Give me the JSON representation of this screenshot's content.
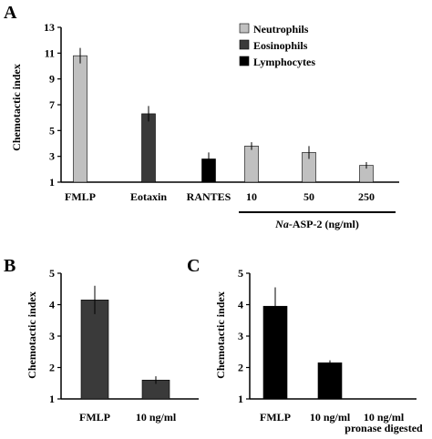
{
  "chart_data": [
    {
      "panel": "A",
      "type": "bar",
      "ylabel": "Chemotactic index",
      "yticks": [
        1,
        3,
        5,
        7,
        9,
        11,
        13
      ],
      "ylim": [
        1,
        13
      ],
      "categories": [
        "FMLP",
        "Eotaxin",
        "RANTES",
        "10",
        "50",
        "250"
      ],
      "group_label_prefix": "Na",
      "group_label_suffix": "-ASP-2 (ng/ml)",
      "legend": "top-right",
      "series": [
        {
          "name": "Neutrophils",
          "color": "#c0c0c0",
          "bars": [
            {
              "category": "FMLP",
              "value": 10.8,
              "error": 0.6
            },
            {
              "category": "10",
              "value": 3.8,
              "error": 0.3
            },
            {
              "category": "50",
              "value": 3.3,
              "error": 0.5
            },
            {
              "category": "250",
              "value": 2.3,
              "error": 0.25
            }
          ]
        },
        {
          "name": "Eosinophils",
          "color": "#3a3a3a",
          "bars": [
            {
              "category": "Eotaxin",
              "value": 6.3,
              "error": 0.6
            }
          ]
        },
        {
          "name": "Lymphocytes",
          "color": "#000000",
          "bars": [
            {
              "category": "RANTES",
              "value": 2.8,
              "error": 0.5
            }
          ]
        }
      ]
    },
    {
      "panel": "B",
      "type": "bar",
      "ylabel": "Chemotactic index",
      "yticks": [
        1,
        2,
        3,
        4,
        5
      ],
      "ylim": [
        1,
        5
      ],
      "categories": [
        "FMLP",
        "10 ng/ml"
      ],
      "color": "#3a3a3a",
      "values": [
        4.15,
        1.6
      ],
      "errors": [
        0.45,
        0.12
      ]
    },
    {
      "panel": "C",
      "type": "bar",
      "ylabel": "Chemotactic index",
      "yticks": [
        1,
        2,
        3,
        4,
        5
      ],
      "ylim": [
        1,
        5
      ],
      "categories": [
        "FMLP",
        "10 ng/ml",
        "10 ng/ml pronase digested"
      ],
      "category_lines": [
        [
          "FMLP"
        ],
        [
          "10 ng/ml"
        ],
        [
          "10 ng/ml",
          "pronase digested"
        ]
      ],
      "color": "#000000",
      "values": [
        3.95,
        2.15,
        1.0
      ],
      "errors": [
        0.6,
        0.08,
        0
      ]
    }
  ]
}
